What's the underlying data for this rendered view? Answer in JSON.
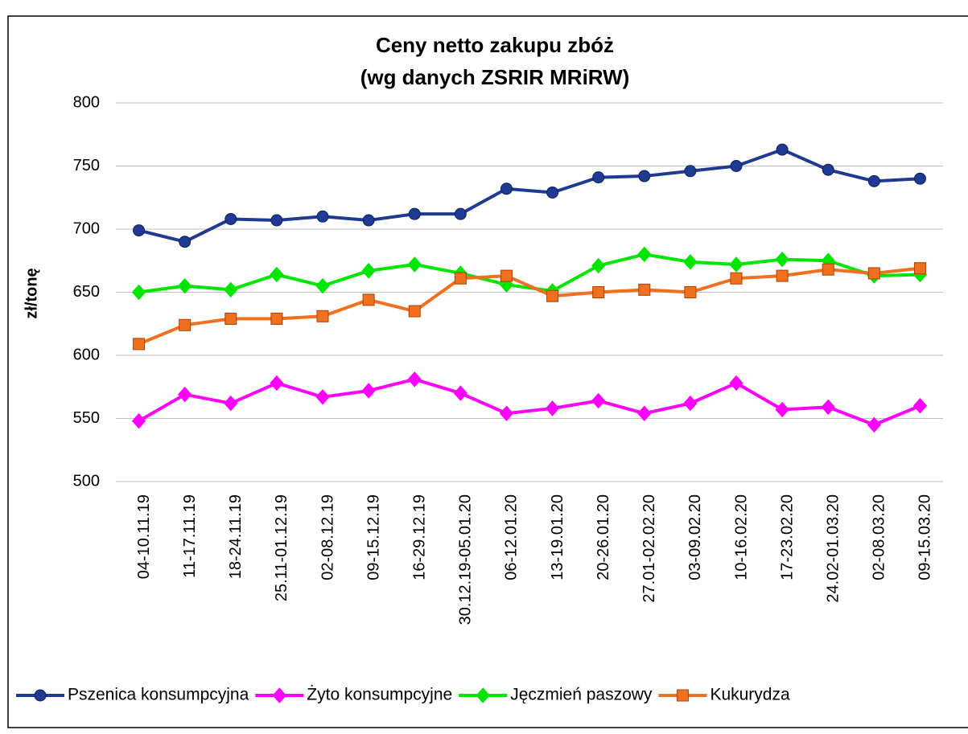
{
  "chart_data": {
    "type": "line",
    "title": "Ceny netto zakupu zbóż",
    "subtitle": "(wg danych ZSRIR MRiRW)",
    "y_label": "zł/tonę",
    "categories": [
      "04-10.11.19",
      "11-17.11.19",
      "18-24.11.19",
      "25.11-01.12.19",
      "02-08.12.19",
      "09-15.12.19",
      "16-29.12.19",
      "30.12.19-05.01.20",
      "06-12.01.20",
      "13-19.01.20",
      "20-26.01.20",
      "27.01-02.02.20",
      "03-09.02.20",
      "10-16.02.20",
      "17-23.02.20",
      "24.02-01.03.20",
      "02-08.03.20",
      "09-15.03.20"
    ],
    "series": [
      {
        "name": "Pszenica konsumpcyjna",
        "color": "#1f3a93",
        "marker": "circle",
        "values": [
          699,
          690,
          708,
          707,
          710,
          707,
          712,
          712,
          732,
          729,
          741,
          742,
          746,
          750,
          763,
          747,
          738,
          740
        ]
      },
      {
        "name": "Żyto konsumpcyjne",
        "color": "#ff00ff",
        "marker": "diamond",
        "values": [
          548,
          569,
          562,
          578,
          567,
          572,
          581,
          570,
          554,
          558,
          564,
          554,
          562,
          578,
          557,
          559,
          545,
          560
        ]
      },
      {
        "name": "Jęczmień paszowy",
        "color": "#00e600",
        "marker": "diamond",
        "values": [
          650,
          655,
          652,
          664,
          655,
          667,
          672,
          665,
          656,
          651,
          671,
          680,
          674,
          672,
          676,
          675,
          663,
          664
        ]
      },
      {
        "name": "Kukurydza",
        "color": "#f07020",
        "marker": "square",
        "values": [
          609,
          624,
          629,
          629,
          631,
          644,
          635,
          661,
          663,
          647,
          650,
          652,
          650,
          661,
          663,
          668,
          665,
          669
        ]
      }
    ],
    "ylim": [
      500,
      800
    ],
    "yticks": [
      500,
      550,
      600,
      650,
      700,
      750,
      800
    ],
    "grid": true,
    "legend": "bottom"
  }
}
